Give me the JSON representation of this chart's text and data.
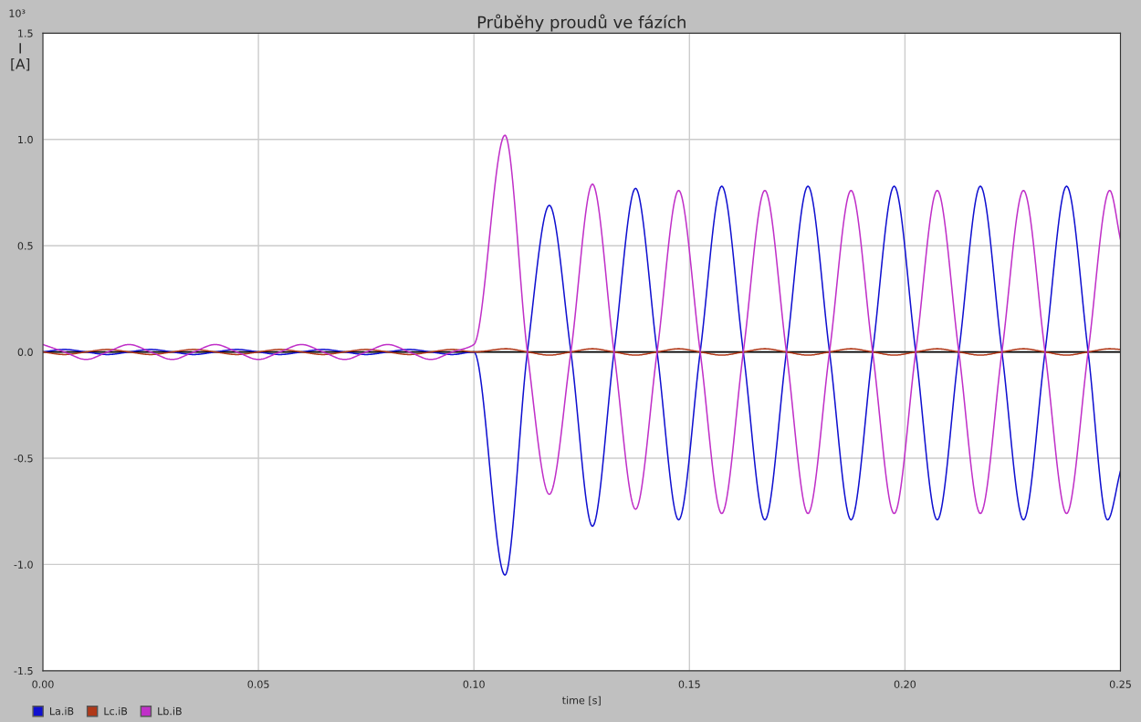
{
  "chart_data": {
    "type": "line",
    "title": "Průběhy proudů ve fázích",
    "xlabel": "time [s]",
    "ylabel": "I\n[A]",
    "annotations": [
      "10³"
    ],
    "xlim": [
      0,
      0.25
    ],
    "ylim": [
      -1.5,
      1.5
    ],
    "xticks": [
      {
        "value": 0,
        "label": "0.00"
      },
      {
        "value": 0.05,
        "label": "0.05"
      },
      {
        "value": 0.1,
        "label": "0.10"
      },
      {
        "value": 0.15,
        "label": "0.15"
      },
      {
        "value": 0.2,
        "label": "0.20"
      },
      {
        "value": 0.25,
        "label": "0.25"
      }
    ],
    "yticks": [
      {
        "value": -1.5,
        "label": "-1.5"
      },
      {
        "value": -1.0,
        "label": "-1.0"
      },
      {
        "value": -0.5,
        "label": "-0.5"
      },
      {
        "value": 0,
        "label": "0.0"
      },
      {
        "value": 0.5,
        "label": "0.5"
      },
      {
        "value": 1.0,
        "label": "1.0"
      },
      {
        "value": 1.5,
        "label": "1.5"
      }
    ],
    "grid": true,
    "legend": "bottom left",
    "line_style": "solid",
    "marker": "none",
    "ref_lines": [
      {
        "axis": "y",
        "value": 0,
        "color": "#000000"
      }
    ],
    "series": [
      {
        "name": "La.iB",
        "color": "#1010d0",
        "x": [
          0,
          0.005,
          0.01,
          0.015,
          0.02,
          0.025,
          0.03,
          0.035,
          0.04,
          0.045,
          0.05,
          0.055,
          0.06,
          0.065,
          0.07,
          0.075,
          0.08,
          0.085,
          0.09,
          0.095,
          0.1,
          0.1072,
          0.1124,
          0.1175,
          0.1225,
          0.1275,
          0.1325,
          0.1375,
          0.1425,
          0.1475,
          0.1525,
          0.1575,
          0.1625,
          0.1675,
          0.1725,
          0.1775,
          0.1825,
          0.1875,
          0.1925,
          0.1975,
          0.2025,
          0.2075,
          0.2125,
          0.2175,
          0.2225,
          0.2275,
          0.2325,
          0.2375,
          0.2425,
          0.247,
          0.25
        ],
        "values": [
          0,
          0.012,
          0,
          -0.012,
          0,
          0.012,
          0,
          -0.012,
          0,
          0.012,
          0,
          -0.012,
          0,
          0.012,
          0,
          -0.012,
          0,
          0.012,
          0,
          -0.012,
          0,
          -1.05,
          0,
          0.69,
          0,
          -0.82,
          0,
          0.77,
          0,
          -0.79,
          0,
          0.78,
          0,
          -0.79,
          0,
          0.78,
          0,
          -0.79,
          0,
          0.78,
          0,
          -0.79,
          0,
          0.78,
          0,
          -0.79,
          0,
          0.78,
          0,
          -0.79,
          -0.56
        ]
      },
      {
        "name": "Lc.iB",
        "color": "#b03818",
        "x": [
          0,
          0.005,
          0.01,
          0.015,
          0.02,
          0.025,
          0.03,
          0.035,
          0.04,
          0.045,
          0.05,
          0.055,
          0.06,
          0.065,
          0.07,
          0.075,
          0.08,
          0.085,
          0.09,
          0.095,
          0.1,
          0.1075,
          0.1125,
          0.1175,
          0.1225,
          0.1275,
          0.1325,
          0.1375,
          0.1425,
          0.1475,
          0.1525,
          0.1575,
          0.1625,
          0.1675,
          0.1725,
          0.1775,
          0.1825,
          0.1875,
          0.1925,
          0.1975,
          0.2025,
          0.2075,
          0.2125,
          0.2175,
          0.2225,
          0.2275,
          0.2325,
          0.2375,
          0.2425,
          0.2475,
          0.25
        ],
        "values": [
          0,
          -0.012,
          0,
          0.012,
          0,
          -0.012,
          0,
          0.012,
          0,
          -0.012,
          0,
          0.012,
          0,
          -0.012,
          0,
          0.012,
          0,
          -0.012,
          0,
          0.012,
          0,
          0.015,
          0,
          -0.015,
          0,
          0.015,
          0,
          -0.015,
          0,
          0.015,
          0,
          -0.015,
          0,
          0.015,
          0,
          -0.015,
          0,
          0.015,
          0,
          -0.015,
          0,
          0.015,
          0,
          -0.015,
          0,
          0.015,
          0,
          -0.015,
          0,
          0.015,
          0.012
        ]
      },
      {
        "name": "Lb.iB",
        "color": "#c030c8",
        "x": [
          0,
          0.005,
          0.01,
          0.015,
          0.02,
          0.025,
          0.03,
          0.035,
          0.04,
          0.045,
          0.05,
          0.055,
          0.06,
          0.065,
          0.07,
          0.075,
          0.08,
          0.085,
          0.09,
          0.095,
          0.1,
          0.1072,
          0.1124,
          0.1175,
          0.1225,
          0.1275,
          0.1325,
          0.1375,
          0.1425,
          0.1475,
          0.1525,
          0.1575,
          0.1625,
          0.1675,
          0.1725,
          0.1775,
          0.1825,
          0.1875,
          0.1925,
          0.1975,
          0.2025,
          0.2075,
          0.2125,
          0.2175,
          0.2225,
          0.2275,
          0.2325,
          0.2375,
          0.2425,
          0.2475,
          0.25
        ],
        "values": [
          0.035,
          0,
          -0.035,
          0,
          0.035,
          0,
          -0.035,
          0,
          0.035,
          0,
          -0.035,
          0,
          0.035,
          0,
          -0.035,
          0,
          0.035,
          0,
          -0.035,
          0,
          0.035,
          1.02,
          0,
          -0.67,
          0,
          0.79,
          0,
          -0.74,
          0,
          0.76,
          0,
          -0.76,
          0,
          0.76,
          0,
          -0.76,
          0,
          0.76,
          0,
          -0.76,
          0,
          0.76,
          0,
          -0.76,
          0,
          0.76,
          0,
          -0.76,
          0,
          0.76,
          0.53
        ]
      }
    ]
  }
}
